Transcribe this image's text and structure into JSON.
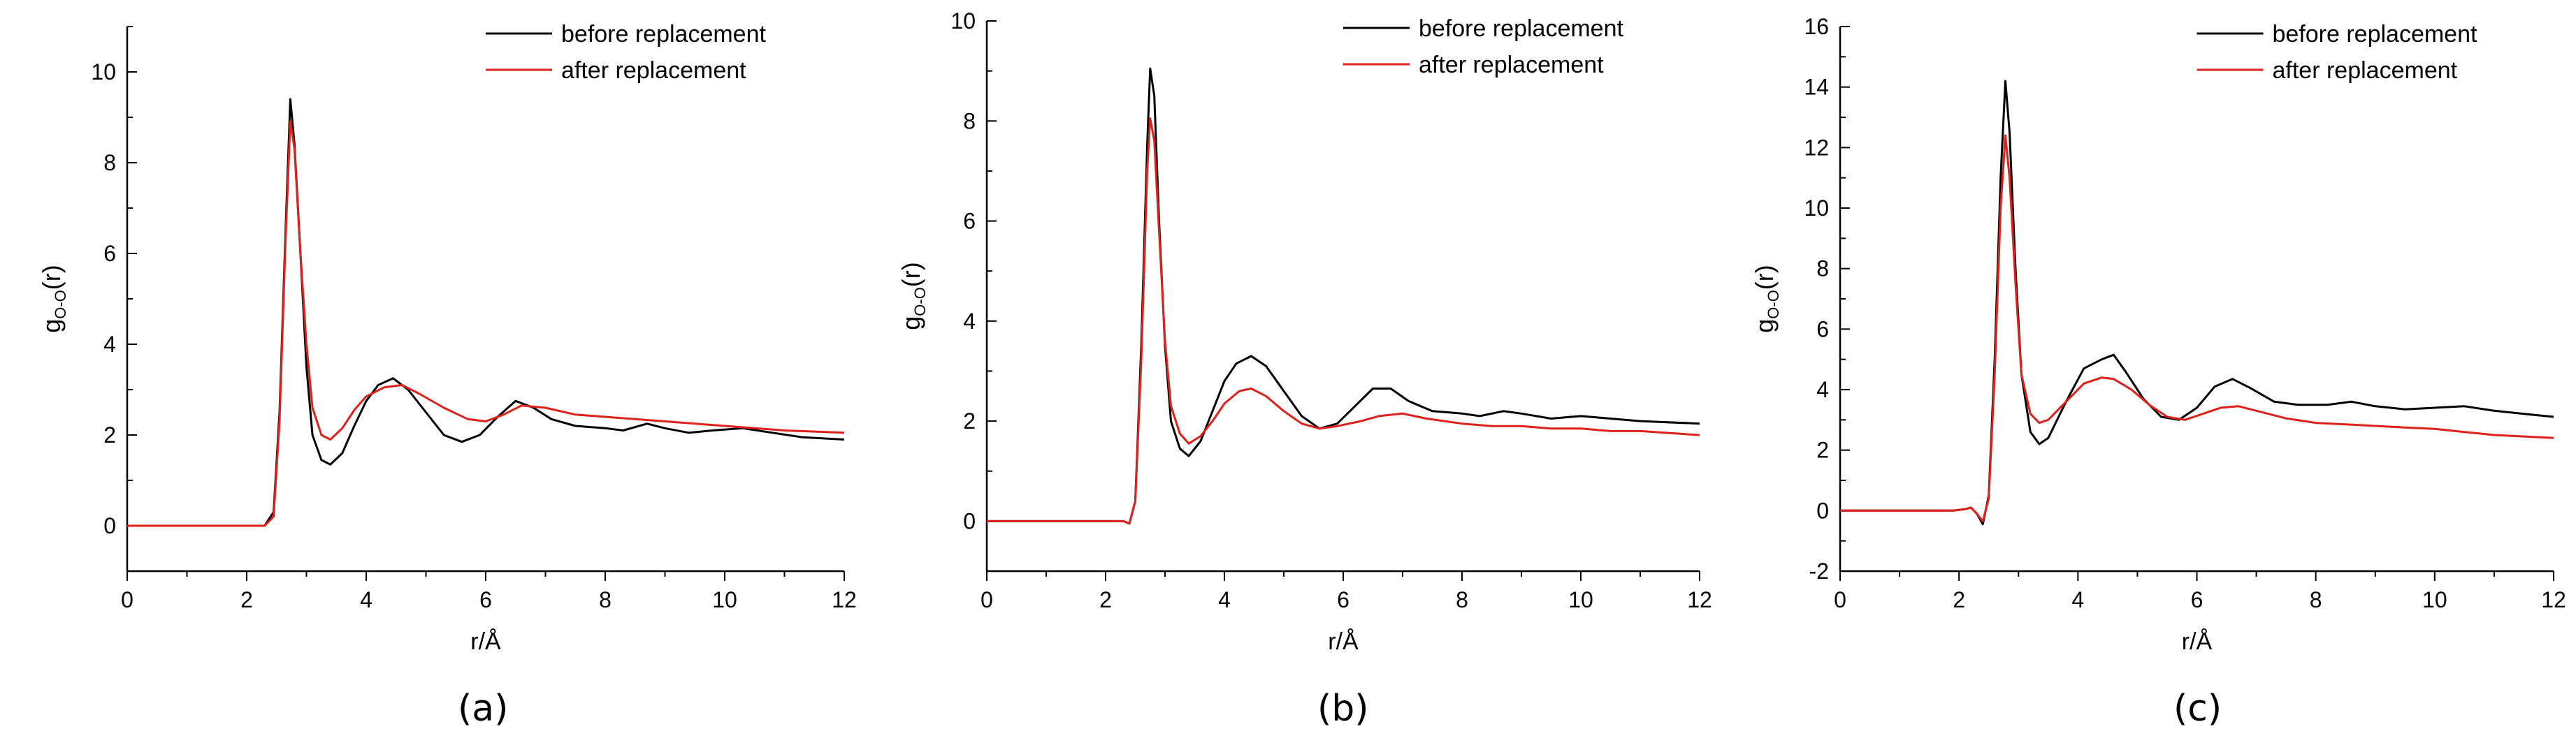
{
  "figure": {
    "captions": [
      "(a)",
      "(b)",
      "(c)"
    ]
  },
  "colors": {
    "before": "#000000",
    "after": "#e0201b"
  },
  "chart_data": [
    {
      "type": "line",
      "panel": "(a)",
      "xlabel": "r/Å",
      "ylabel_main": "g",
      "ylabel_sub": "O-O",
      "ylabel_tail": "(r)",
      "xlim": [
        0,
        12
      ],
      "ylim": [
        -1,
        11
      ],
      "xticks": [
        0,
        2,
        4,
        6,
        8,
        10,
        12
      ],
      "yticks": [
        0,
        2,
        4,
        6,
        8,
        10
      ],
      "legend_position": "top-right",
      "series": [
        {
          "name": "before replacement",
          "color": "#000000",
          "points": [
            [
              0,
              0
            ],
            [
              2.1,
              0
            ],
            [
              2.3,
              0
            ],
            [
              2.45,
              0.3
            ],
            [
              2.55,
              2.5
            ],
            [
              2.65,
              6.5
            ],
            [
              2.73,
              9.4
            ],
            [
              2.8,
              8.4
            ],
            [
              2.9,
              6.0
            ],
            [
              3.0,
              3.5
            ],
            [
              3.1,
              2.0
            ],
            [
              3.25,
              1.45
            ],
            [
              3.4,
              1.35
            ],
            [
              3.6,
              1.6
            ],
            [
              3.8,
              2.2
            ],
            [
              4.0,
              2.75
            ],
            [
              4.2,
              3.1
            ],
            [
              4.45,
              3.25
            ],
            [
              4.7,
              3.0
            ],
            [
              5.0,
              2.5
            ],
            [
              5.3,
              2.0
            ],
            [
              5.6,
              1.85
            ],
            [
              5.9,
              2.0
            ],
            [
              6.2,
              2.4
            ],
            [
              6.5,
              2.75
            ],
            [
              6.8,
              2.6
            ],
            [
              7.1,
              2.35
            ],
            [
              7.5,
              2.2
            ],
            [
              8.0,
              2.15
            ],
            [
              8.3,
              2.1
            ],
            [
              8.7,
              2.25
            ],
            [
              9.0,
              2.15
            ],
            [
              9.4,
              2.05
            ],
            [
              9.8,
              2.1
            ],
            [
              10.3,
              2.15
            ],
            [
              10.8,
              2.05
            ],
            [
              11.3,
              1.95
            ],
            [
              12.0,
              1.9
            ]
          ]
        },
        {
          "name": "after replacement",
          "color": "#e0201b",
          "points": [
            [
              0,
              0
            ],
            [
              2.1,
              0
            ],
            [
              2.3,
              0
            ],
            [
              2.45,
              0.2
            ],
            [
              2.55,
              2.3
            ],
            [
              2.65,
              6.3
            ],
            [
              2.73,
              8.9
            ],
            [
              2.8,
              8.3
            ],
            [
              2.9,
              6.0
            ],
            [
              3.0,
              4.0
            ],
            [
              3.1,
              2.6
            ],
            [
              3.25,
              2.0
            ],
            [
              3.4,
              1.9
            ],
            [
              3.6,
              2.15
            ],
            [
              3.8,
              2.55
            ],
            [
              4.0,
              2.85
            ],
            [
              4.3,
              3.05
            ],
            [
              4.6,
              3.1
            ],
            [
              4.9,
              2.9
            ],
            [
              5.3,
              2.6
            ],
            [
              5.7,
              2.35
            ],
            [
              6.0,
              2.3
            ],
            [
              6.3,
              2.45
            ],
            [
              6.6,
              2.65
            ],
            [
              7.0,
              2.6
            ],
            [
              7.5,
              2.45
            ],
            [
              8.0,
              2.4
            ],
            [
              8.5,
              2.35
            ],
            [
              9.0,
              2.3
            ],
            [
              9.5,
              2.25
            ],
            [
              10.0,
              2.2
            ],
            [
              10.5,
              2.15
            ],
            [
              11.0,
              2.1
            ],
            [
              12.0,
              2.05
            ]
          ]
        }
      ]
    },
    {
      "type": "line",
      "panel": "(b)",
      "xlabel": "r/Å",
      "ylabel_main": "g",
      "ylabel_sub": "O-O",
      "ylabel_tail": "(r)",
      "xlim": [
        0,
        12
      ],
      "ylim": [
        -1,
        10
      ],
      "xticks": [
        0,
        2,
        4,
        6,
        8,
        10,
        12
      ],
      "yticks": [
        0,
        2,
        4,
        6,
        8,
        10
      ],
      "legend_position": "top-right",
      "series": [
        {
          "name": "before replacement",
          "color": "#000000",
          "points": [
            [
              0,
              0
            ],
            [
              2.1,
              0
            ],
            [
              2.3,
              0
            ],
            [
              2.4,
              -0.05
            ],
            [
              2.5,
              0.4
            ],
            [
              2.6,
              3.5
            ],
            [
              2.7,
              7.5
            ],
            [
              2.75,
              9.05
            ],
            [
              2.82,
              8.5
            ],
            [
              2.9,
              6.0
            ],
            [
              3.0,
              3.5
            ],
            [
              3.1,
              2.0
            ],
            [
              3.25,
              1.45
            ],
            [
              3.4,
              1.3
            ],
            [
              3.6,
              1.6
            ],
            [
              3.8,
              2.2
            ],
            [
              4.0,
              2.8
            ],
            [
              4.2,
              3.15
            ],
            [
              4.45,
              3.3
            ],
            [
              4.7,
              3.1
            ],
            [
              5.0,
              2.6
            ],
            [
              5.3,
              2.1
            ],
            [
              5.6,
              1.85
            ],
            [
              5.9,
              1.95
            ],
            [
              6.2,
              2.3
            ],
            [
              6.5,
              2.65
            ],
            [
              6.8,
              2.65
            ],
            [
              7.1,
              2.4
            ],
            [
              7.5,
              2.2
            ],
            [
              8.0,
              2.15
            ],
            [
              8.3,
              2.1
            ],
            [
              8.7,
              2.2
            ],
            [
              9.0,
              2.15
            ],
            [
              9.5,
              2.05
            ],
            [
              10.0,
              2.1
            ],
            [
              10.5,
              2.05
            ],
            [
              11.0,
              2.0
            ],
            [
              12.0,
              1.95
            ]
          ]
        },
        {
          "name": "after replacement",
          "color": "#e0201b",
          "points": [
            [
              0,
              0
            ],
            [
              2.1,
              0
            ],
            [
              2.3,
              0
            ],
            [
              2.4,
              -0.05
            ],
            [
              2.5,
              0.4
            ],
            [
              2.6,
              3.2
            ],
            [
              2.7,
              7.0
            ],
            [
              2.75,
              8.05
            ],
            [
              2.82,
              7.6
            ],
            [
              2.9,
              5.8
            ],
            [
              3.0,
              3.6
            ],
            [
              3.1,
              2.3
            ],
            [
              3.25,
              1.75
            ],
            [
              3.4,
              1.55
            ],
            [
              3.6,
              1.7
            ],
            [
              3.8,
              2.0
            ],
            [
              4.0,
              2.35
            ],
            [
              4.25,
              2.6
            ],
            [
              4.45,
              2.65
            ],
            [
              4.7,
              2.5
            ],
            [
              5.0,
              2.2
            ],
            [
              5.3,
              1.95
            ],
            [
              5.6,
              1.85
            ],
            [
              5.9,
              1.9
            ],
            [
              6.3,
              2.0
            ],
            [
              6.6,
              2.1
            ],
            [
              7.0,
              2.15
            ],
            [
              7.4,
              2.05
            ],
            [
              8.0,
              1.95
            ],
            [
              8.5,
              1.9
            ],
            [
              9.0,
              1.9
            ],
            [
              9.5,
              1.85
            ],
            [
              10.0,
              1.85
            ],
            [
              10.5,
              1.8
            ],
            [
              11.0,
              1.8
            ],
            [
              12.0,
              1.72
            ]
          ]
        }
      ]
    },
    {
      "type": "line",
      "panel": "(c)",
      "xlabel": "r/Å",
      "ylabel_main": "g",
      "ylabel_sub": "O-O",
      "ylabel_tail": "(r)",
      "xlim": [
        0,
        12
      ],
      "ylim": [
        -2,
        16
      ],
      "xticks": [
        0,
        2,
        4,
        6,
        8,
        10,
        12
      ],
      "yticks": [
        -2,
        0,
        2,
        4,
        6,
        8,
        10,
        12,
        14,
        16
      ],
      "legend_position": "top-right",
      "series": [
        {
          "name": "before replacement",
          "color": "#000000",
          "points": [
            [
              0,
              0
            ],
            [
              1.9,
              0
            ],
            [
              2.1,
              0.05
            ],
            [
              2.2,
              0.1
            ],
            [
              2.3,
              -0.1
            ],
            [
              2.4,
              -0.45
            ],
            [
              2.5,
              0.5
            ],
            [
              2.6,
              5.0
            ],
            [
              2.7,
              11.0
            ],
            [
              2.78,
              14.2
            ],
            [
              2.85,
              12.5
            ],
            [
              2.95,
              8.0
            ],
            [
              3.05,
              4.5
            ],
            [
              3.2,
              2.6
            ],
            [
              3.35,
              2.2
            ],
            [
              3.5,
              2.4
            ],
            [
              3.8,
              3.6
            ],
            [
              4.1,
              4.7
            ],
            [
              4.4,
              5.0
            ],
            [
              4.6,
              5.15
            ],
            [
              4.8,
              4.6
            ],
            [
              5.1,
              3.7
            ],
            [
              5.4,
              3.1
            ],
            [
              5.7,
              3.0
            ],
            [
              6.0,
              3.4
            ],
            [
              6.3,
              4.1
            ],
            [
              6.6,
              4.35
            ],
            [
              6.9,
              4.05
            ],
            [
              7.3,
              3.6
            ],
            [
              7.7,
              3.5
            ],
            [
              8.2,
              3.5
            ],
            [
              8.6,
              3.6
            ],
            [
              9.0,
              3.45
            ],
            [
              9.5,
              3.35
            ],
            [
              10.0,
              3.4
            ],
            [
              10.5,
              3.45
            ],
            [
              11.0,
              3.3
            ],
            [
              11.5,
              3.2
            ],
            [
              12.0,
              3.1
            ]
          ]
        },
        {
          "name": "after replacement",
          "color": "#e0201b",
          "points": [
            [
              0,
              0
            ],
            [
              1.9,
              0
            ],
            [
              2.1,
              0.05
            ],
            [
              2.2,
              0.1
            ],
            [
              2.3,
              -0.1
            ],
            [
              2.4,
              -0.35
            ],
            [
              2.5,
              0.4
            ],
            [
              2.6,
              4.5
            ],
            [
              2.7,
              10.0
            ],
            [
              2.78,
              12.4
            ],
            [
              2.85,
              11.0
            ],
            [
              2.95,
              7.5
            ],
            [
              3.05,
              4.5
            ],
            [
              3.2,
              3.2
            ],
            [
              3.35,
              2.9
            ],
            [
              3.5,
              3.0
            ],
            [
              3.8,
              3.6
            ],
            [
              4.1,
              4.2
            ],
            [
              4.4,
              4.4
            ],
            [
              4.6,
              4.35
            ],
            [
              4.9,
              4.0
            ],
            [
              5.2,
              3.5
            ],
            [
              5.5,
              3.1
            ],
            [
              5.8,
              3.0
            ],
            [
              6.1,
              3.2
            ],
            [
              6.4,
              3.4
            ],
            [
              6.7,
              3.45
            ],
            [
              7.0,
              3.3
            ],
            [
              7.5,
              3.05
            ],
            [
              8.0,
              2.9
            ],
            [
              8.5,
              2.85
            ],
            [
              9.0,
              2.8
            ],
            [
              9.5,
              2.75
            ],
            [
              10.0,
              2.7
            ],
            [
              10.5,
              2.6
            ],
            [
              11.0,
              2.5
            ],
            [
              12.0,
              2.4
            ]
          ]
        }
      ]
    }
  ]
}
